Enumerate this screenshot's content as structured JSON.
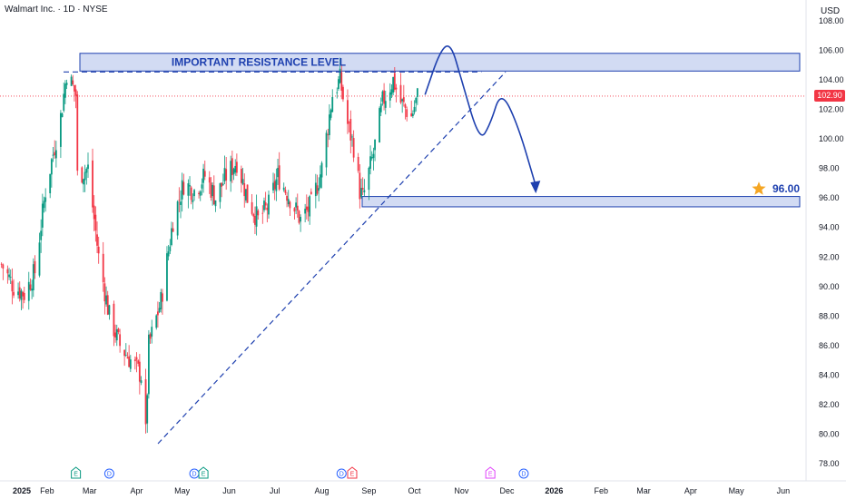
{
  "header": {
    "symbol": "Walmart Inc. · 1D · NYSE",
    "currency": "USD"
  },
  "last_price": "102.90",
  "chart_data": {
    "type": "candlestick",
    "title": "Walmart Inc. · 1D · NYSE",
    "ylim": [
      77,
      108
    ],
    "y_ticks": [
      "108.00",
      "106.00",
      "104.00",
      "102.00",
      "100.00",
      "98.00",
      "96.00",
      "94.00",
      "92.00",
      "90.00",
      "88.00",
      "86.00",
      "84.00",
      "82.00",
      "80.00",
      "78.00"
    ],
    "x_ticks": [
      {
        "label": "2025",
        "bold": true
      },
      {
        "label": "Feb"
      },
      {
        "label": "Mar"
      },
      {
        "label": "Apr"
      },
      {
        "label": "May"
      },
      {
        "label": "Jun"
      },
      {
        "label": "Jul"
      },
      {
        "label": "Aug"
      },
      {
        "label": "Sep"
      },
      {
        "label": "Oct"
      },
      {
        "label": "Nov"
      },
      {
        "label": "Dec"
      },
      {
        "label": "2026",
        "bold": true
      },
      {
        "label": "Feb"
      },
      {
        "label": "Mar"
      },
      {
        "label": "Apr"
      },
      {
        "label": "May"
      },
      {
        "label": "Jun"
      }
    ],
    "colors": {
      "up": "#089981",
      "down": "#f23645",
      "annotation": "#1e40af",
      "zone_fill": "#c7d2f0",
      "star": "#f5a623"
    },
    "close_path": [
      [
        "2025-01-02",
        91.5
      ],
      [
        "2025-01-10",
        90.0
      ],
      [
        "2025-01-17",
        89.5
      ],
      [
        "2025-01-24",
        91.0
      ],
      [
        "2025-01-31",
        96.5
      ],
      [
        "2025-02-10",
        101.5
      ],
      [
        "2025-02-14",
        104.5
      ],
      [
        "2025-02-20",
        103.0
      ],
      [
        "2025-02-21",
        97.5
      ],
      [
        "2025-02-28",
        98.0
      ],
      [
        "2025-03-07",
        92.0
      ],
      [
        "2025-03-14",
        88.0
      ],
      [
        "2025-03-21",
        86.0
      ],
      [
        "2025-03-28",
        85.0
      ],
      [
        "2025-04-04",
        84.0
      ],
      [
        "2025-04-07",
        80.0
      ],
      [
        "2025-04-09",
        86.0
      ],
      [
        "2025-04-17",
        89.0
      ],
      [
        "2025-04-25",
        94.5
      ],
      [
        "2025-05-02",
        97.0
      ],
      [
        "2025-05-09",
        96.5
      ],
      [
        "2025-05-16",
        97.5
      ],
      [
        "2025-05-23",
        96.0
      ],
      [
        "2025-05-30",
        97.5
      ],
      [
        "2025-06-06",
        98.5
      ],
      [
        "2025-06-13",
        96.0
      ],
      [
        "2025-06-20",
        94.5
      ],
      [
        "2025-06-27",
        95.5
      ],
      [
        "2025-07-03",
        97.5
      ],
      [
        "2025-07-11",
        96.0
      ],
      [
        "2025-07-18",
        94.5
      ],
      [
        "2025-07-25",
        95.5
      ],
      [
        "2025-08-01",
        98.0
      ],
      [
        "2025-08-08",
        103.0
      ],
      [
        "2025-08-13",
        104.0
      ],
      [
        "2025-08-18",
        101.0
      ],
      [
        "2025-08-22",
        99.5
      ],
      [
        "2025-08-26",
        96.5
      ],
      [
        "2025-08-28",
        96.0
      ],
      [
        "2025-09-04",
        99.0
      ],
      [
        "2025-09-10",
        102.5
      ],
      [
        "2025-09-17",
        104.0
      ],
      [
        "2025-09-22",
        102.5
      ],
      [
        "2025-09-29",
        101.5
      ],
      [
        "2025-10-03",
        102.9
      ]
    ],
    "annotations": {
      "resistance_label": "IMPORTANT RESISTANCE LEVEL",
      "resistance_zone": [
        104.6,
        105.8
      ],
      "support_zone": [
        95.4,
        96.1
      ],
      "target_label": "96.00",
      "target_price": 96.0,
      "last_price": 102.9,
      "trendline": [
        [
          "2025-04-07",
          79.5
        ],
        [
          "2025-10-31",
          104.6
        ]
      ],
      "resistance_dashed": [
        [
          "2025-02-01",
          104.6
        ],
        [
          "2025-11-01",
          104.6
        ]
      ],
      "projection": [
        [
          "2025-10-08",
          103.0
        ],
        [
          "2025-10-18",
          106.0
        ],
        [
          "2025-10-25",
          106.5
        ],
        [
          "2025-11-01",
          104.0
        ],
        [
          "2025-11-13",
          99.8
        ],
        [
          "2025-11-20",
          101.0
        ],
        [
          "2025-11-27",
          103.3
        ],
        [
          "2025-12-08",
          101.0
        ],
        [
          "2025-12-20",
          96.8
        ]
      ]
    },
    "events": [
      {
        "label": "E",
        "date": "2025-02-20",
        "color": "#089981"
      },
      {
        "label": "D",
        "date": "2025-03-14",
        "color": "#2962ff"
      },
      {
        "label": "D",
        "date": "2025-05-09",
        "color": "#2962ff"
      },
      {
        "label": "E",
        "date": "2025-05-15",
        "color": "#089981"
      },
      {
        "label": "D",
        "date": "2025-08-14",
        "color": "#2962ff"
      },
      {
        "label": "E",
        "date": "2025-08-21",
        "color": "#f23645"
      },
      {
        "label": "E",
        "date": "2025-11-20",
        "color": "#e040fb"
      },
      {
        "label": "D",
        "date": "2025-12-12",
        "color": "#2962ff"
      }
    ]
  }
}
